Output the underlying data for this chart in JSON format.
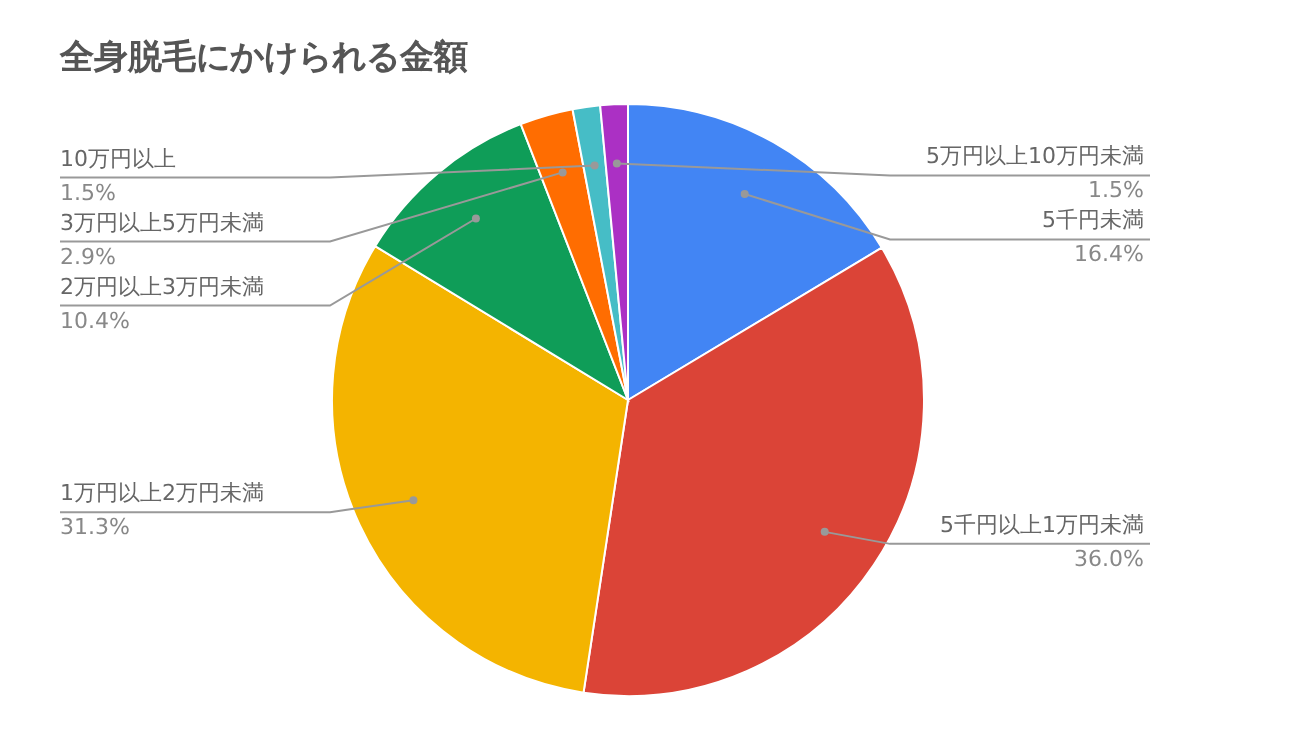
{
  "chart_data": {
    "type": "pie",
    "title": "全身脱毛にかけられる金額",
    "categories": [
      "5千円未満",
      "5千円以上1万円未満",
      "1万円以上2万円未満",
      "2万円以上3万円未満",
      "3万円以上5万円未満",
      "10万円以上",
      "5万円以上10万円未満"
    ],
    "values": [
      16.4,
      36.0,
      31.3,
      10.4,
      2.9,
      1.5,
      1.5
    ],
    "colors": [
      "#4285f4",
      "#db4437",
      "#f4b400",
      "#0f9d58",
      "#ff6d01",
      "#46bdc6",
      "#ab30c4"
    ],
    "value_labels": [
      "16.4%",
      "36.0%",
      "31.3%",
      "10.4%",
      "2.9%",
      "1.5%",
      "1.5%"
    ]
  }
}
